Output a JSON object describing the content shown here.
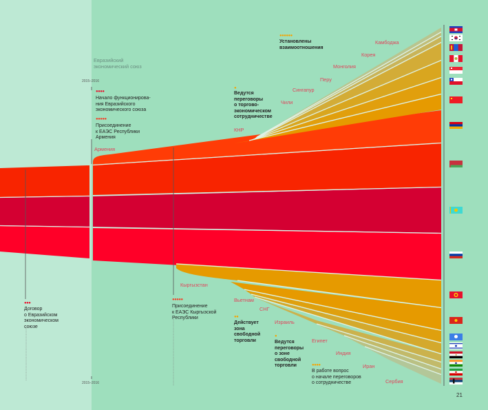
{
  "header": {
    "region_title_line1": "Евразийский",
    "region_title_line2": "экономический союз"
  },
  "years": {
    "top": "2015–2016",
    "bottom": "2015–2016"
  },
  "events": [
    {
      "dots": "●●●",
      "lines": [
        "Договор",
        "о Евразийском",
        "экономическом",
        "союзе"
      ]
    },
    {
      "dots": "●●●●",
      "lines": [
        "Начало функционирова-",
        "ния Евразийского",
        "экономического союза"
      ]
    },
    {
      "dots": "●●●●●",
      "lines": [
        "Присоединение",
        "к ЕАЭС Республики",
        "Армения"
      ]
    },
    {
      "dots": "●●●●●",
      "lines": [
        "Присоединение",
        "к ЕАЭС Кыргызской",
        "Республики"
      ]
    }
  ],
  "legend": [
    {
      "dots": "●●●●●●",
      "lines": [
        "Установлены",
        "взаимоотношения"
      ]
    },
    {
      "dots": "●",
      "lines": [
        "Ведутся",
        "переговоры",
        "о торгово-",
        "экономическом",
        "сотрудничестве"
      ]
    },
    {
      "dots": "●●",
      "lines": [
        "Действует",
        "зона",
        "свободной",
        "торговли"
      ]
    },
    {
      "dots": "●",
      "lines": [
        "Ведутся",
        "переговоры",
        "о зоне",
        "свободной",
        "торговли"
      ]
    },
    {
      "dots": "●●●●",
      "lines": [
        "В работе вопрос",
        "о начале переговоров",
        "о сотрудничестве"
      ]
    }
  ],
  "countries_upper": [
    "КНР",
    "Чили",
    "Сингапур",
    "Перу",
    "Монголия",
    "Корея",
    "Камбоджа"
  ],
  "countries_lower": [
    "Кыргызстан",
    "Вьетнам",
    "СНГ",
    "Израиль",
    "Египет",
    "Индия",
    "Иран",
    "Сербия"
  ],
  "country_armenia": "Армения",
  "flags": [
    "cambodia",
    "south-korea",
    "mongolia",
    "peru",
    "singapore",
    "chile",
    "china",
    "armenia",
    "belarus",
    "kazakhstan",
    "russia",
    "kyrgyzstan",
    "vietnam",
    "cis",
    "israel",
    "egypt",
    "india",
    "iran",
    "serbia"
  ],
  "page_number": "21",
  "colors": {
    "bg_light": "#bde9d4",
    "bg": "#9edfbd",
    "belarus": "#f82400",
    "kazakhstan": "#d40032",
    "russia": "#ff0028",
    "armenia": "#ff3c06",
    "orange": "#e69a00",
    "label_red": "#e0435a",
    "dot_red": "#e8112d",
    "dot_orange": "#f5a400"
  }
}
